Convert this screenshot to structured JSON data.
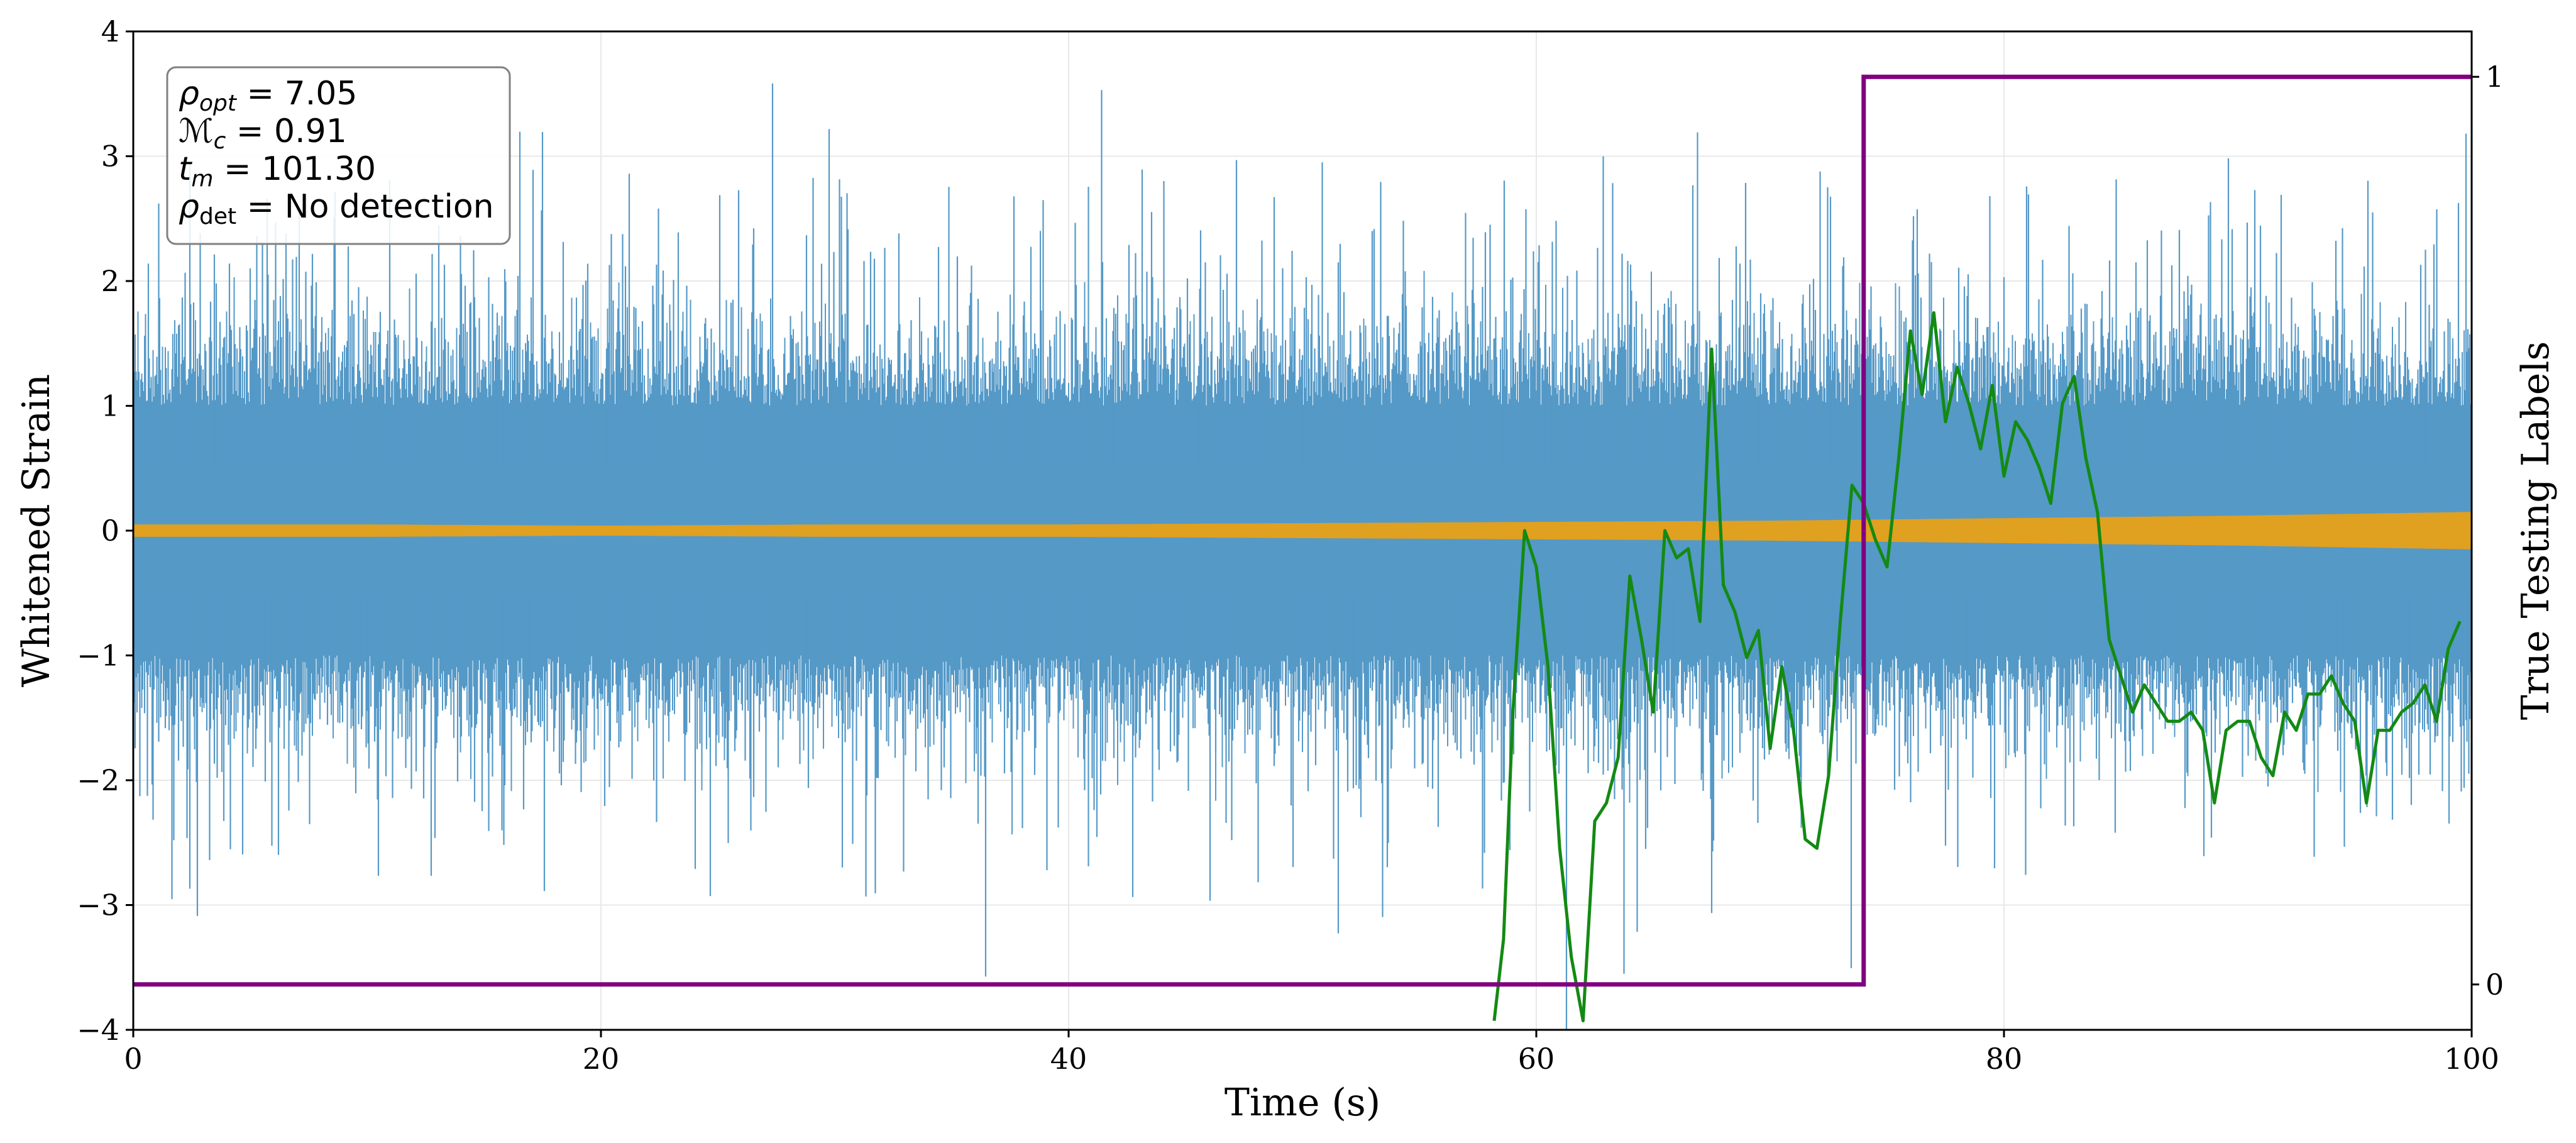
{
  "chart_data": {
    "type": "line",
    "title": "",
    "xlabel": "Time (s)",
    "ylabel": "Whitened Strain",
    "y2label": "True Testing Labels",
    "xlim": [
      0,
      100
    ],
    "ylim": [
      -4,
      4
    ],
    "y2lim": [
      -0.05,
      1.05
    ],
    "x_ticks": [
      0,
      20,
      40,
      60,
      80,
      100
    ],
    "x_tick_labels": [
      "0",
      "20",
      "40",
      "60",
      "80",
      "100"
    ],
    "y_ticks": [
      -4,
      -3,
      -2,
      -1,
      0,
      1,
      2,
      3,
      4
    ],
    "y_tick_labels": [
      "−4",
      "−3",
      "−2",
      "−1",
      "0",
      "1",
      "2",
      "3",
      "4"
    ],
    "y2_ticks": [
      0,
      1
    ],
    "y2_tick_labels": [
      "0",
      "1"
    ],
    "grid": true,
    "annotation": {
      "placement": "top-left",
      "lines": [
        {
          "symbol": "ρ",
          "sub": "opt",
          "value": " = 7.05"
        },
        {
          "symbol": "ℳ",
          "sub": "c",
          "value": " = 0.91"
        },
        {
          "symbol": "t",
          "sub": "m",
          "value": " = 101.30"
        },
        {
          "symbol": "ρ",
          "sub": "det",
          "value": " = No detection"
        }
      ]
    },
    "series": [
      {
        "role": "whitened-strain-noise",
        "color": "#5599c7",
        "axis": "left",
        "render": "dense-noise",
        "x_range": [
          0,
          100
        ],
        "typical_band": [
          -1.0,
          1.0
        ],
        "spike_range": [
          -4.0,
          4.0
        ]
      },
      {
        "role": "injected-signal",
        "color": "#e0a020",
        "axis": "left",
        "x": [
          0,
          10,
          20,
          30,
          40,
          50,
          60,
          70,
          80,
          90,
          100
        ],
        "amplitude": [
          0.05,
          0.05,
          0.04,
          0.05,
          0.05,
          0.06,
          0.07,
          0.08,
          0.1,
          0.12,
          0.15
        ]
      },
      {
        "role": "prediction",
        "color": "#138a13",
        "axis": "right",
        "x": [
          58.2,
          58.6,
          59.0,
          59.5,
          60.0,
          60.5,
          61.0,
          61.5,
          62.0,
          62.5,
          63.0,
          63.5,
          64.0,
          64.5,
          65.0,
          65.5,
          66.0,
          66.5,
          67.0,
          67.5,
          68.0,
          68.5,
          69.0,
          69.5,
          70.0,
          70.5,
          71.0,
          71.5,
          72.0,
          72.5,
          73.0,
          73.5,
          74.0,
          74.5,
          75.0,
          75.5,
          76.0,
          76.5,
          77.0,
          77.5,
          78.0,
          78.5,
          79.0,
          79.5,
          80.0,
          80.5,
          81.0,
          81.5,
          82.0,
          82.5,
          83.0,
          83.5,
          84.0,
          84.5,
          85.0,
          85.5,
          86.0,
          86.5,
          87.0,
          87.5,
          88.0,
          88.5,
          89.0,
          89.5,
          90.0,
          90.5,
          91.0,
          91.5,
          92.0,
          92.5,
          93.0,
          93.5,
          94.0,
          94.5,
          95.0,
          95.5,
          96.0,
          96.5,
          97.0,
          97.5,
          98.0,
          98.5,
          99.0,
          99.5
        ],
        "y": [
          -0.04,
          0.05,
          0.3,
          0.5,
          0.46,
          0.35,
          0.15,
          0.03,
          -0.04,
          0.18,
          0.2,
          0.25,
          0.45,
          0.38,
          0.3,
          0.5,
          0.47,
          0.48,
          0.4,
          0.7,
          0.44,
          0.41,
          0.36,
          0.39,
          0.26,
          0.35,
          0.28,
          0.16,
          0.15,
          0.23,
          0.4,
          0.55,
          0.53,
          0.49,
          0.46,
          0.58,
          0.72,
          0.65,
          0.74,
          0.62,
          0.68,
          0.64,
          0.59,
          0.66,
          0.56,
          0.62,
          0.6,
          0.57,
          0.53,
          0.64,
          0.67,
          0.58,
          0.52,
          0.38,
          0.34,
          0.3,
          0.33,
          0.31,
          0.29,
          0.29,
          0.3,
          0.28,
          0.2,
          0.28,
          0.29,
          0.29,
          0.25,
          0.23,
          0.3,
          0.28,
          0.32,
          0.32,
          0.34,
          0.31,
          0.29,
          0.2,
          0.28,
          0.28,
          0.3,
          0.31,
          0.33,
          0.29,
          0.37,
          0.4
        ]
      },
      {
        "role": "true-label",
        "color": "#800080",
        "axis": "right",
        "x": [
          0,
          74.0,
          74.0,
          100
        ],
        "y": [
          0,
          0,
          1,
          1
        ]
      }
    ]
  }
}
